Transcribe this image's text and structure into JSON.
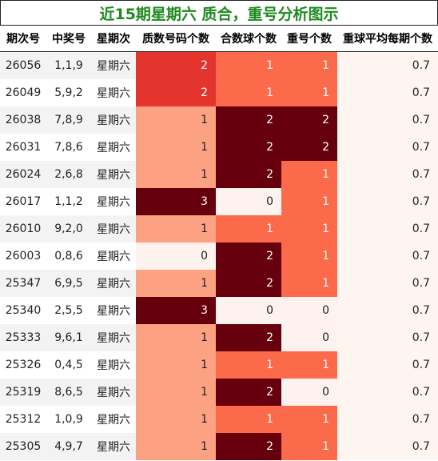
{
  "title": "近15期星期六 质合，重号分析图示",
  "chart_data": {
    "type": "table",
    "columns": [
      "期次号",
      "中奖号",
      "星期次",
      "质数号码个数",
      "合数球个数",
      "重号个数",
      "重球平均每期个数"
    ],
    "rows": [
      [
        "26056",
        "1,1,9",
        "星期六",
        2,
        1,
        1,
        0.7
      ],
      [
        "26049",
        "5,9,2",
        "星期六",
        2,
        1,
        1,
        0.7
      ],
      [
        "26038",
        "7,8,9",
        "星期六",
        1,
        2,
        2,
        0.7
      ],
      [
        "26031",
        "7,8,6",
        "星期六",
        1,
        2,
        2,
        0.7
      ],
      [
        "26024",
        "2,6,8",
        "星期六",
        1,
        2,
        1,
        0.7
      ],
      [
        "26017",
        "1,1,2",
        "星期六",
        3,
        0,
        1,
        0.7
      ],
      [
        "26010",
        "9,2,0",
        "星期六",
        1,
        1,
        1,
        0.7
      ],
      [
        "26003",
        "0,8,6",
        "星期六",
        0,
        2,
        1,
        0.7
      ],
      [
        "25347",
        "6,9,5",
        "星期六",
        1,
        2,
        1,
        0.7
      ],
      [
        "25340",
        "2,5,5",
        "星期六",
        3,
        0,
        0,
        0.7
      ],
      [
        "25333",
        "9,6,1",
        "星期六",
        1,
        2,
        0,
        0.7
      ],
      [
        "25326",
        "0,4,5",
        "星期六",
        1,
        1,
        1,
        0.7
      ],
      [
        "25319",
        "8,6,5",
        "星期六",
        1,
        2,
        0,
        0.7
      ],
      [
        "25312",
        "1,0,9",
        "星期六",
        1,
        1,
        1,
        0.7
      ],
      [
        "25305",
        "4,9,7",
        "星期六",
        1,
        2,
        1,
        0.7
      ]
    ]
  },
  "colors": {
    "title_text": "#1f8a1f",
    "heat_level_0": "#fef2ee",
    "heat_level_1": "#fca283",
    "heat_level_1_alt": "#fb6a4a",
    "heat_level_2": "#e3342d",
    "heat_level_top": "#67000d",
    "avg_cell": "#fff5f0"
  }
}
